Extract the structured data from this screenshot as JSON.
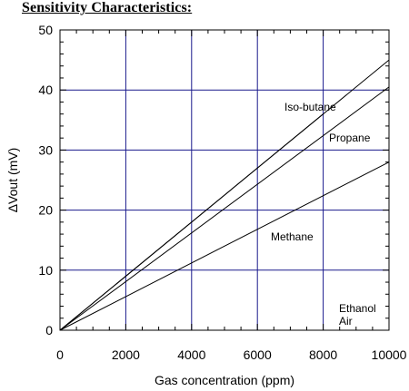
{
  "header": {
    "title": "Sensitivity Characteristics:"
  },
  "colors": {
    "grid": "#1a1a8c",
    "line": "#000000",
    "background": "#ffffff"
  },
  "chart_data": {
    "type": "line",
    "title": "Sensitivity Characteristics:",
    "xlabel": "Gas concentration (ppm)",
    "ylabel": "ΔVout (mV)",
    "xlim": [
      0,
      10000
    ],
    "ylim": [
      0,
      50
    ],
    "xticks": [
      0,
      2000,
      4000,
      6000,
      8000,
      10000
    ],
    "yticks": [
      0,
      10,
      20,
      30,
      40,
      50
    ],
    "grid": true,
    "series": [
      {
        "name": "Iso-butane",
        "x": [
          0,
          8000
        ],
        "y": [
          0,
          36
        ]
      },
      {
        "name": "Propane",
        "x": [
          0,
          10000
        ],
        "y": [
          0,
          40.5
        ]
      },
      {
        "name": "Methane",
        "x": [
          0,
          10000
        ],
        "y": [
          0,
          28
        ]
      },
      {
        "name": "Ethanol",
        "x": [
          0,
          10000
        ],
        "y": [
          0,
          0
        ]
      },
      {
        "name": "Air",
        "x": [
          0,
          10000
        ],
        "y": [
          0,
          0
        ]
      }
    ],
    "extra_lines": [
      {
        "x": [
          0,
          10000
        ],
        "y": [
          0,
          45
        ]
      }
    ]
  }
}
